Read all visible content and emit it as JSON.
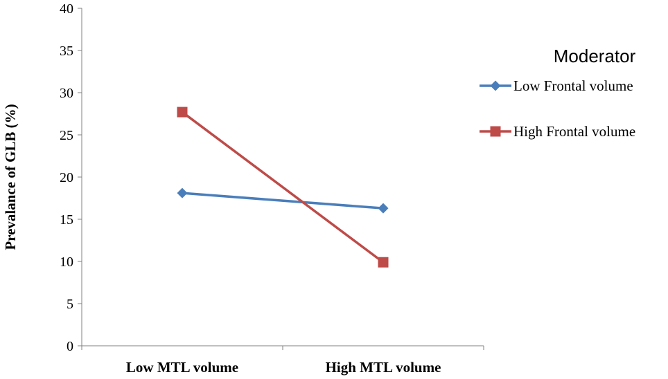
{
  "chart_data": {
    "type": "line",
    "categories": [
      "Low MTL volume",
      "High MTL volume"
    ],
    "ylabel": "Prevalance of GLB (%)",
    "xlabel": "",
    "ylim": [
      0,
      40
    ],
    "yticks": [
      0,
      5,
      10,
      15,
      20,
      25,
      30,
      35,
      40
    ],
    "grid": false,
    "legend": {
      "title": "Moderator",
      "placement": "right"
    },
    "series": [
      {
        "name": "Low Frontal volume",
        "values": [
          18.1,
          16.3
        ],
        "color": "#4a7ebb",
        "marker": "diamond"
      },
      {
        "name": "High Frontal volume",
        "values": [
          27.7,
          9.9
        ],
        "color": "#be4b48",
        "marker": "square"
      }
    ]
  }
}
